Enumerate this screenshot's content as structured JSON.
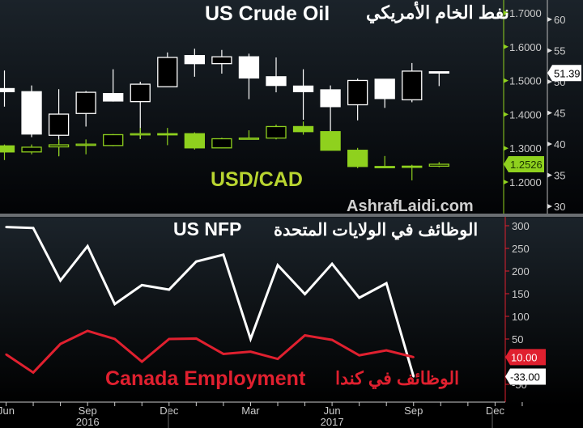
{
  "chart_data": [
    {
      "type": "candlestick",
      "panel": "top",
      "title_en": "US Crude Oil",
      "title_ar": "نفط الخام الأمريكي",
      "series": [
        {
          "name": "US Crude Oil",
          "color": "#ffffff",
          "axis": "right-outer",
          "last_value": "51.39",
          "ohlc": [
            [
              48.9,
              51.8,
              46.0,
              48.4
            ],
            [
              48.4,
              49.4,
              41.1,
              41.6
            ],
            [
              41.4,
              48.8,
              38.1,
              44.8
            ],
            [
              44.9,
              48.5,
              42.8,
              48.3
            ],
            [
              48.1,
              52.0,
              46.8,
              46.9
            ],
            [
              46.8,
              50.0,
              40.8,
              49.6
            ],
            [
              49.2,
              54.7,
              49.2,
              53.9
            ],
            [
              54.2,
              55.3,
              50.8,
              52.9
            ],
            [
              52.9,
              55.1,
              51.3,
              54.0
            ],
            [
              54.0,
              54.5,
              47.2,
              50.6
            ],
            [
              50.8,
              53.9,
              48.3,
              49.4
            ],
            [
              49.3,
              52.0,
              43.9,
              48.4
            ],
            [
              48.7,
              49.4,
              42.0,
              46.0
            ],
            [
              46.3,
              50.5,
              43.8,
              50.2
            ],
            [
              50.4,
              50.4,
              45.8,
              47.3
            ],
            [
              47.1,
              53.0,
              46.7,
              51.7
            ],
            [
              51.6,
              51.6,
              49.3,
              51.39
            ]
          ]
        },
        {
          "name": "USD/CAD",
          "color": "#8fd11e",
          "axis": "right-inner",
          "last_value": "1.2526",
          "ohlc": [
            [
              1.307,
              1.311,
              1.265,
              1.289
            ],
            [
              1.289,
              1.311,
              1.282,
              1.303
            ],
            [
              1.304,
              1.326,
              1.276,
              1.31
            ],
            [
              1.31,
              1.326,
              1.282,
              1.312
            ],
            [
              1.308,
              1.342,
              1.306,
              1.34
            ],
            [
              1.34,
              1.36,
              1.327,
              1.343
            ],
            [
              1.343,
              1.36,
              1.309,
              1.343
            ],
            [
              1.343,
              1.347,
              1.296,
              1.301
            ],
            [
              1.301,
              1.331,
              1.3,
              1.328
            ],
            [
              1.328,
              1.353,
              1.326,
              1.33
            ],
            [
              1.33,
              1.37,
              1.326,
              1.364
            ],
            [
              1.364,
              1.379,
              1.34,
              1.349
            ],
            [
              1.349,
              1.35,
              1.294,
              1.294
            ],
            [
              1.294,
              1.301,
              1.241,
              1.246
            ],
            [
              1.246,
              1.277,
              1.245,
              1.246
            ],
            [
              1.247,
              1.251,
              1.205,
              1.247
            ],
            [
              1.247,
              1.259,
              1.244,
              1.2526
            ]
          ]
        }
      ],
      "label_usdcad": "USD/CAD",
      "watermark": "AshrafLaidi.com",
      "y_inner_ticks": [
        "1.7000",
        "1.6000",
        "1.5000",
        "1.4000",
        "1.3000",
        "1.2000"
      ],
      "y_inner_range": [
        1.15,
        1.74
      ],
      "y_outer_ticks": [
        "60",
        "55",
        "50",
        "45",
        "40",
        "35",
        "30"
      ],
      "y_outer_range": [
        28,
        63
      ]
    },
    {
      "type": "line",
      "panel": "bottom",
      "title_en": "US NFP",
      "title_ar": "الوظائف في الولايات المتحدة",
      "label_canada_en": "Canada Employment",
      "label_canada_ar": "الوظائف في كندا",
      "x": [
        "2016-06",
        "2016-07",
        "2016-08",
        "2016-09",
        "2016-10",
        "2016-11",
        "2016-12",
        "2017-01",
        "2017-02",
        "2017-03",
        "2017-04",
        "2017-05",
        "2017-06",
        "2017-07",
        "2017-08",
        "2017-09"
      ],
      "series": [
        {
          "name": "US NFP",
          "color": "#ffffff",
          "last_value": "-33.00",
          "values": [
            297,
            295,
            179,
            255,
            127,
            169,
            159,
            221,
            236,
            50,
            213,
            149,
            216,
            141,
            173,
            -33
          ]
        },
        {
          "name": "Canada Employment",
          "color": "#e0202f",
          "last_value": "10.00",
          "values": [
            16,
            -24,
            39,
            68,
            50,
            0,
            50,
            51,
            17,
            22,
            6,
            58,
            48,
            14,
            25,
            10
          ]
        }
      ],
      "y_ticks": [
        "300",
        "250",
        "200",
        "150",
        "100",
        "50",
        "-50"
      ],
      "y_range": [
        -75,
        310
      ],
      "x_tick_labels": [
        "Jun",
        "Sep",
        "Dec",
        "Mar",
        "Jun",
        "Sep",
        "Dec"
      ],
      "x_year_labels": [
        "2016",
        "2017"
      ]
    }
  ]
}
